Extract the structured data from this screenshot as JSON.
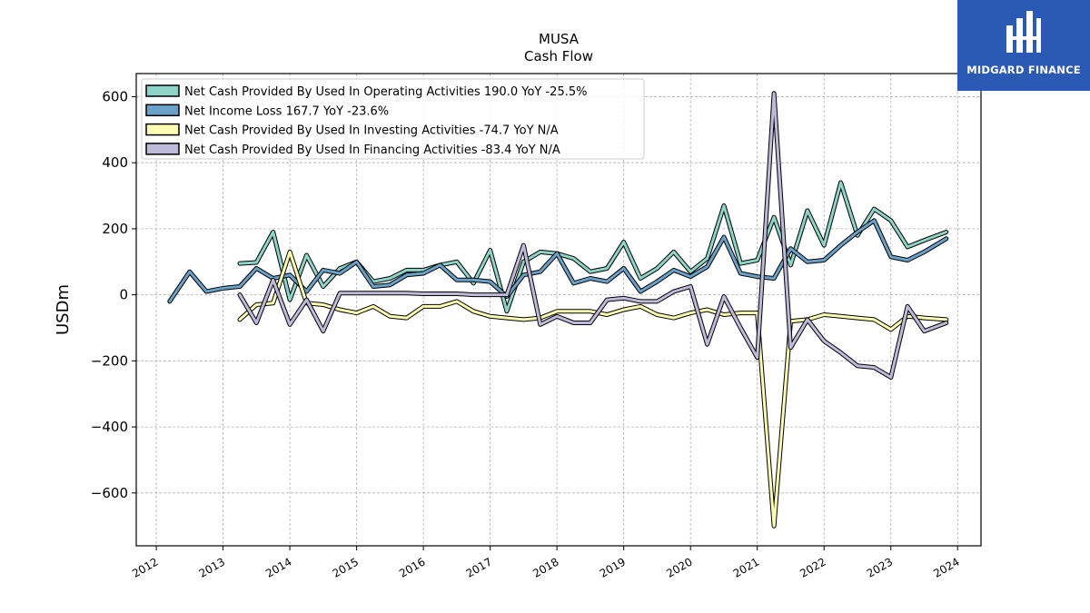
{
  "brand": {
    "name": "MIDGARD FINANCE",
    "bg_color": "#2a5ab3"
  },
  "chart_data": {
    "type": "line",
    "title": "MUSA",
    "subtitle": "Cash Flow",
    "ylabel": "USDm",
    "xlabel": "",
    "xlim": [
      2011.7,
      2024.35
    ],
    "ylim": [
      -760,
      670
    ],
    "yticks": [
      600,
      400,
      200,
      0,
      -200,
      -400,
      -600
    ],
    "ytick_labels": [
      "600",
      "400",
      "200",
      "0",
      "−200",
      "−400",
      "−600"
    ],
    "xticks": [
      2012,
      2013,
      2014,
      2015,
      2016,
      2017,
      2018,
      2019,
      2020,
      2021,
      2022,
      2023,
      2024
    ],
    "xtick_labels": [
      "2012",
      "2013",
      "2014",
      "2015",
      "2016",
      "2017",
      "2018",
      "2019",
      "2020",
      "2021",
      "2022",
      "2023",
      "2024"
    ],
    "grid": true,
    "legend_position": "top-left",
    "series": [
      {
        "name": "Net Cash Provided By Used In Operating Activities  190.0 YoY -25.5%",
        "color": "#8dd3c7",
        "x": [
          2013.25,
          2013.5,
          2013.75,
          2014.0,
          2014.25,
          2014.5,
          2014.75,
          2015.0,
          2015.25,
          2015.5,
          2015.75,
          2016.0,
          2016.25,
          2016.5,
          2016.75,
          2017.0,
          2017.25,
          2017.5,
          2017.75,
          2018.0,
          2018.25,
          2018.5,
          2018.75,
          2019.0,
          2019.25,
          2019.5,
          2019.75,
          2020.0,
          2020.25,
          2020.5,
          2020.75,
          2021.0,
          2021.25,
          2021.5,
          2021.75,
          2022.0,
          2022.25,
          2022.5,
          2022.75,
          2023.0,
          2023.25,
          2023.5,
          2023.83
        ],
        "y": [
          95,
          98,
          190,
          -15,
          120,
          25,
          80,
          100,
          40,
          50,
          75,
          75,
          90,
          100,
          35,
          135,
          -50,
          100,
          130,
          125,
          110,
          70,
          80,
          160,
          50,
          80,
          130,
          70,
          110,
          270,
          95,
          105,
          235,
          90,
          255,
          150,
          340,
          180,
          260,
          225,
          145,
          165,
          190
        ]
      },
      {
        "name": "Net Income Loss  167.7 YoY -23.6%",
        "color": "#6aa1c9",
        "x": [
          2012.2,
          2012.5,
          2012.75,
          2013.0,
          2013.25,
          2013.5,
          2013.75,
          2014.0,
          2014.25,
          2014.5,
          2014.75,
          2015.0,
          2015.25,
          2015.5,
          2015.75,
          2016.0,
          2016.25,
          2016.5,
          2016.75,
          2017.0,
          2017.25,
          2017.5,
          2017.75,
          2018.0,
          2018.25,
          2018.5,
          2018.75,
          2019.0,
          2019.25,
          2019.5,
          2019.75,
          2020.0,
          2020.25,
          2020.5,
          2020.75,
          2021.0,
          2021.25,
          2021.5,
          2021.75,
          2022.0,
          2022.25,
          2022.5,
          2022.75,
          2023.0,
          2023.25,
          2023.5,
          2023.83
        ],
        "y": [
          -20,
          70,
          10,
          20,
          25,
          80,
          50,
          60,
          10,
          75,
          65,
          100,
          25,
          30,
          60,
          65,
          90,
          45,
          45,
          40,
          -5,
          60,
          70,
          125,
          35,
          50,
          40,
          80,
          10,
          40,
          75,
          55,
          85,
          175,
          65,
          55,
          50,
          140,
          100,
          105,
          150,
          190,
          225,
          115,
          105,
          130,
          170
        ]
      },
      {
        "name": "Net Cash Provided By Used In Investing Activities  -74.7 YoY N/A",
        "color": "#ffffb3",
        "x": [
          2013.25,
          2013.5,
          2013.75,
          2014.0,
          2014.25,
          2014.5,
          2014.75,
          2015.0,
          2015.25,
          2015.5,
          2015.75,
          2016.0,
          2016.25,
          2016.5,
          2016.75,
          2017.0,
          2017.25,
          2017.5,
          2017.75,
          2018.0,
          2018.25,
          2018.5,
          2018.75,
          2019.0,
          2019.25,
          2019.5,
          2019.75,
          2020.0,
          2020.25,
          2020.5,
          2020.75,
          2021.0,
          2021.25,
          2021.5,
          2021.75,
          2022.0,
          2022.25,
          2022.5,
          2022.75,
          2023.0,
          2023.25,
          2023.5,
          2023.83
        ],
        "y": [
          -75,
          -30,
          -25,
          130,
          -25,
          -30,
          -45,
          -55,
          -35,
          -65,
          -70,
          -35,
          -35,
          -20,
          -50,
          -65,
          -70,
          -75,
          -70,
          -50,
          -50,
          -50,
          -60,
          -45,
          -35,
          -60,
          -70,
          -55,
          -45,
          -60,
          -55,
          -55,
          -700,
          -80,
          -75,
          -60,
          -65,
          -70,
          -75,
          -105,
          -65,
          -70,
          -75
        ]
      },
      {
        "name": "Net Cash Provided By Used In Financing Activities  -83.4 YoY N/A",
        "color": "#bebada",
        "x": [
          2013.25,
          2013.5,
          2013.75,
          2014.0,
          2014.25,
          2014.5,
          2014.75,
          2015.0,
          2015.25,
          2015.5,
          2015.75,
          2016.0,
          2016.25,
          2016.5,
          2016.75,
          2017.0,
          2017.25,
          2017.5,
          2017.75,
          2018.0,
          2018.25,
          2018.5,
          2018.75,
          2019.0,
          2019.25,
          2019.5,
          2019.75,
          2020.0,
          2020.25,
          2020.5,
          2020.75,
          2021.0,
          2021.25,
          2021.5,
          2021.75,
          2022.0,
          2022.25,
          2022.5,
          2022.75,
          2023.0,
          2023.25,
          2023.5,
          2023.83
        ],
        "y": [
          0,
          -85,
          45,
          -90,
          -15,
          -110,
          5,
          5,
          5,
          5,
          5,
          3,
          3,
          3,
          0,
          0,
          0,
          150,
          -90,
          -65,
          -85,
          -85,
          -15,
          -10,
          -20,
          -20,
          10,
          25,
          -150,
          -5,
          -100,
          -190,
          610,
          -160,
          -75,
          -140,
          -175,
          -215,
          -220,
          -250,
          -35,
          -110,
          -85
        ]
      }
    ]
  }
}
